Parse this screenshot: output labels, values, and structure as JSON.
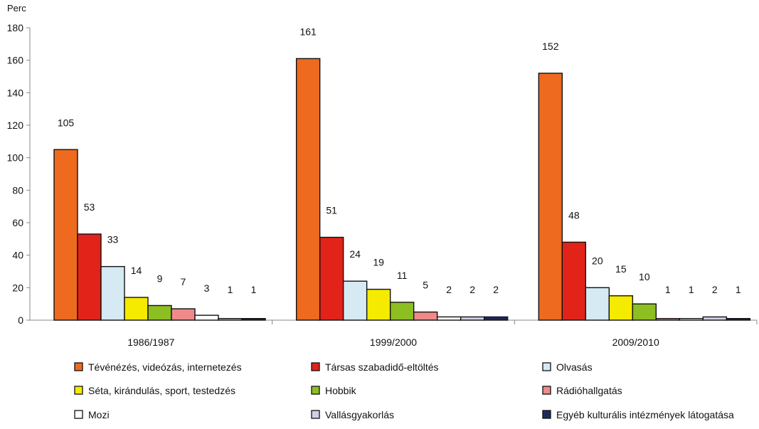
{
  "chart_data": {
    "type": "bar",
    "ylabel": "Perc",
    "ylim": [
      0,
      180
    ],
    "yticks": [
      "0",
      "20",
      "40",
      "60",
      "80",
      "100",
      "120",
      "140",
      "160",
      "180"
    ],
    "categories": [
      "1986/1987",
      "1999/2000",
      "2009/2010"
    ],
    "series": [
      {
        "name": "Tévénézés, videózás, internetezés",
        "color": "#ED6A1F",
        "values": [
          105,
          161,
          152
        ]
      },
      {
        "name": "Társas szabadidő-eltöltés",
        "color": "#E2231A",
        "values": [
          53,
          51,
          48
        ]
      },
      {
        "name": "Olvasás",
        "color": "#D5EAF2",
        "values": [
          33,
          24,
          20
        ]
      },
      {
        "name": "Séta, kirándulás, sport, testedzés",
        "color": "#F5EB00",
        "values": [
          14,
          19,
          15
        ]
      },
      {
        "name": "Hobbik",
        "color": "#8DBE22",
        "values": [
          9,
          11,
          10
        ]
      },
      {
        "name": "Rádióhallgatás",
        "color": "#EE8A8A",
        "values": [
          7,
          5,
          1
        ]
      },
      {
        "name": "Mozi",
        "color": "#FFFFFF",
        "values": [
          3,
          2,
          1
        ]
      },
      {
        "name": "Vallásgyakorlás",
        "color": "#CFCFE6",
        "values": [
          1,
          2,
          2
        ]
      },
      {
        "name": "Egyéb kulturális intézmények látogatása",
        "color": "#1F2A5A",
        "values": [
          1,
          2,
          1
        ]
      }
    ],
    "value_labels": [
      [
        "105",
        "53",
        "33",
        "14",
        "9",
        "7",
        "3",
        "1",
        "1"
      ],
      [
        "161",
        "51",
        "24",
        "19",
        "11",
        "5",
        "2",
        "2",
        "2"
      ],
      [
        "152",
        "48",
        "20",
        "15",
        "10",
        "1",
        "1",
        "2",
        "1"
      ]
    ],
    "legend_position": "bottom",
    "grid": false
  }
}
